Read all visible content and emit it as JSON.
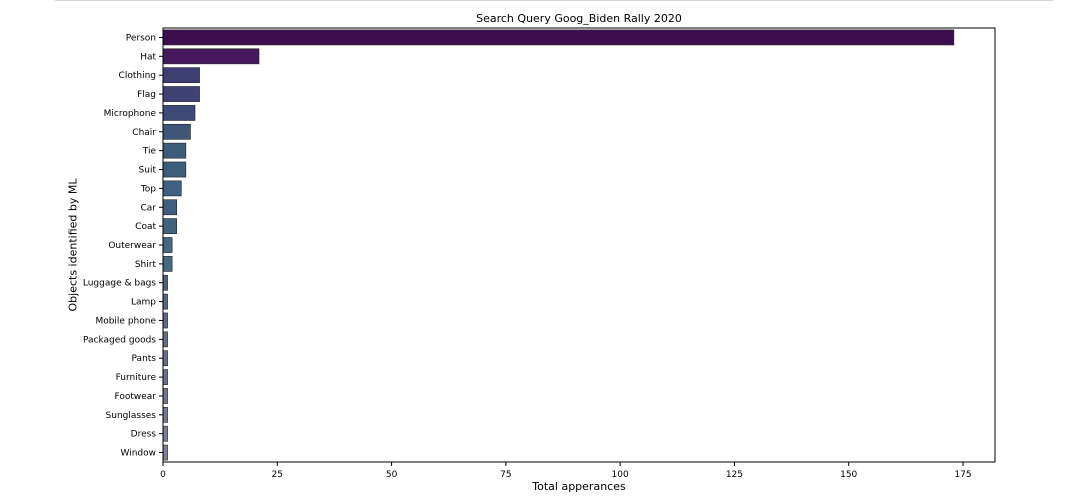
{
  "chart_data": {
    "type": "bar",
    "orientation": "horizontal",
    "title": "Search Query Goog_Biden Rally 2020",
    "xlabel": "Total apperances",
    "ylabel": "Objects identified by ML",
    "xlim": [
      0,
      182
    ],
    "xticks": [
      0,
      25,
      50,
      75,
      100,
      125,
      150,
      175
    ],
    "grid": false,
    "categories": [
      "Person",
      "Hat",
      "Clothing",
      "Flag",
      "Microphone",
      "Chair",
      "Tie",
      "Suit",
      "Top",
      "Car",
      "Coat",
      "Outerwear",
      "Shirt",
      "Luggage & bags",
      "Lamp",
      "Mobile phone",
      "Packaged goods",
      "Pants",
      "Furniture",
      "Footwear",
      "Sunglasses",
      "Dress",
      "Window"
    ],
    "values": [
      173,
      21,
      8,
      8,
      7,
      6,
      5,
      5,
      4,
      3,
      3,
      2,
      2,
      1,
      1,
      1,
      1,
      1,
      1,
      1,
      1,
      1,
      1
    ],
    "colors": [
      "#3b0f4f",
      "#46185e",
      "#3d3f72",
      "#404276",
      "#3e4a77",
      "#3f5676",
      "#3d5a78",
      "#3e5d7a",
      "#3f6080",
      "#405f7e",
      "#43647f",
      "#45677f",
      "#46697f",
      "#50607a",
      "#586680",
      "#5d6a82",
      "#626e86",
      "#676f87",
      "#6b7289",
      "#70768c",
      "#757a8f",
      "#7a7e92",
      "#7f8296"
    ]
  }
}
